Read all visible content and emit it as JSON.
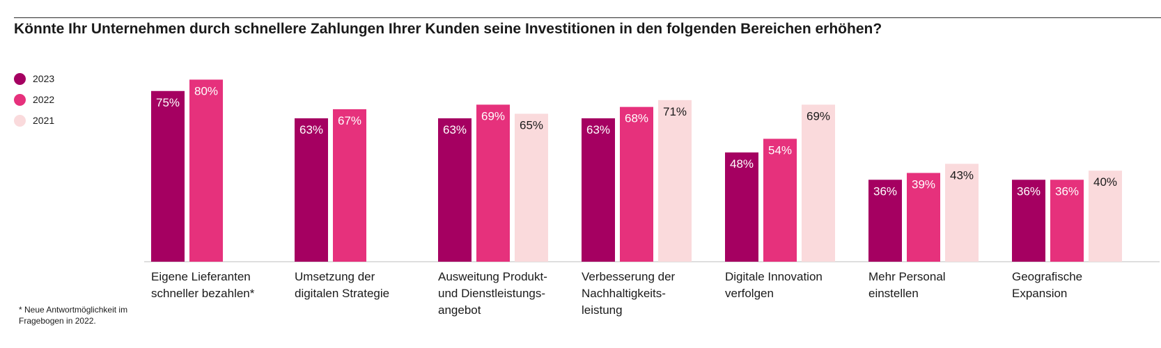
{
  "title": "Könnte Ihr Unternehmen durch schnellere Zahlungen Ihrer Kunden seine Investitionen in den folgenden Bereichen erhöhen?",
  "footnote": "* Neue Antwortmöglichkeit im Fragebogen in 2022.",
  "legend": [
    {
      "label": "2023",
      "color": "#a50061"
    },
    {
      "label": "2022",
      "color": "#e6317c"
    },
    {
      "label": "2021",
      "color": "#fadadc"
    }
  ],
  "chart_data": {
    "type": "bar",
    "categories": [
      [
        "Eigene Lieferanten",
        "schneller bezahlen*"
      ],
      [
        "Umsetzung der",
        "digitalen Strategie"
      ],
      [
        "Ausweitung  Produkt-",
        "und Dienstleistungs-",
        "angebot"
      ],
      [
        "Verbesserung der",
        "Nachhaltigkeits-",
        "leistung"
      ],
      [
        "Digitale Innovation",
        "verfolgen"
      ],
      [
        "Mehr Personal",
        "einstellen"
      ],
      [
        "Geografische",
        "Expansion"
      ]
    ],
    "series": [
      {
        "name": "2023",
        "color": "#a50061",
        "label_color": "#ffffff",
        "values": [
          75,
          63,
          63,
          63,
          48,
          36,
          36
        ],
        "labels": [
          "75%",
          "63%",
          "63%",
          "63%",
          "48%",
          "36%",
          "36%"
        ]
      },
      {
        "name": "2022",
        "color": "#e6317c",
        "label_color": "#ffffff",
        "values": [
          80,
          67,
          69,
          68,
          54,
          39,
          36
        ],
        "labels": [
          "80%",
          "67%",
          "69%",
          "68%",
          "54%",
          "39%",
          "36%"
        ]
      },
      {
        "name": "2021",
        "color": "#fadadc",
        "label_color": "#1a1a1a",
        "values": [
          null,
          null,
          65,
          71,
          69,
          43,
          40
        ],
        "labels": [
          null,
          null,
          "65%",
          "71%",
          "69%",
          "43%",
          "40%"
        ]
      }
    ],
    "ylim": [
      0,
      100
    ],
    "grid": false,
    "legend_position": "top-left"
  }
}
